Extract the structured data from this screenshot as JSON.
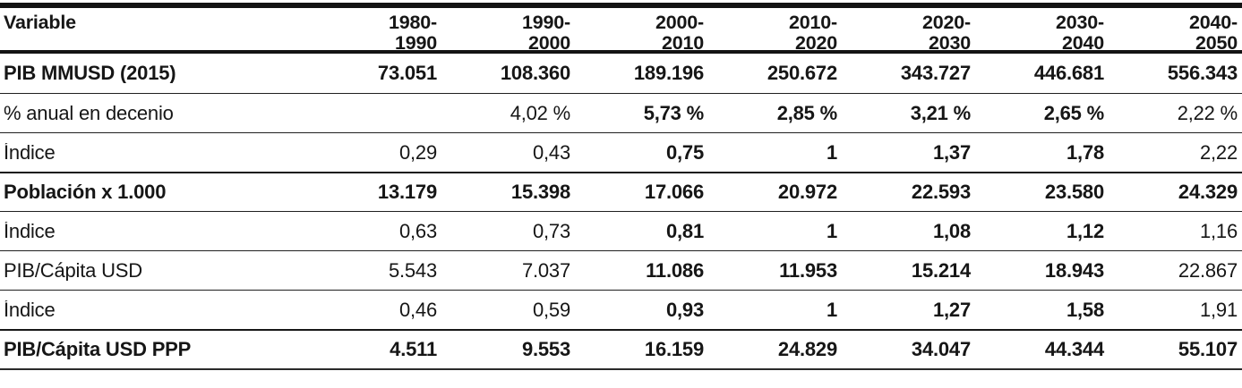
{
  "table": {
    "header": {
      "variable": "Variable",
      "periods": [
        "1980-\n1990",
        "1990-\n2000",
        "2000-\n2010",
        "2010-\n2020",
        "2020-\n2030",
        "2030-\n2040",
        "2040-\n2050"
      ]
    },
    "rows": [
      {
        "label": "PIB MMUSD (2015)",
        "c1": "73.051",
        "c2": "108.360",
        "c3": "189.196",
        "c4": "250.672",
        "c5": "343.727",
        "c6": "446.681",
        "c7": "556.343",
        "bold": [
          "label",
          "c1",
          "c2",
          "c3",
          "c4",
          "c5",
          "c6",
          "c7"
        ]
      },
      {
        "label": "% anual en decenio",
        "c1": "",
        "c2": "4,02 %",
        "c3": "5,73 %",
        "c4": "2,85 %",
        "c5": "3,21 %",
        "c6": "2,65 %",
        "c7": "2,22 %",
        "bold": [
          "c3",
          "c4",
          "c5",
          "c6"
        ]
      },
      {
        "label": "Índice",
        "c1": "0,29",
        "c2": "0,43",
        "c3": "0,75",
        "c4": "1",
        "c5": "1,37",
        "c6": "1,78",
        "c7": "2,22",
        "bold": [
          "c3",
          "c4",
          "c5",
          "c6"
        ]
      },
      {
        "label": "Población x 1.000",
        "c1": "13.179",
        "c2": "15.398",
        "c3": "17.066",
        "c4": "20.972",
        "c5": "22.593",
        "c6": "23.580",
        "c7": "24.329",
        "bold": [
          "label",
          "c1",
          "c2",
          "c3",
          "c4",
          "c5",
          "c6",
          "c7"
        ]
      },
      {
        "label": "Índice",
        "c1": "0,63",
        "c2": "0,73",
        "c3": "0,81",
        "c4": "1",
        "c5": "1,08",
        "c6": "1,12",
        "c7": "1,16",
        "bold": [
          "c3",
          "c4",
          "c5",
          "c6"
        ]
      },
      {
        "label": "PIB/Cápita USD",
        "c1": "5.543",
        "c2": "7.037",
        "c3": "11.086",
        "c4": "11.953",
        "c5": "15.214",
        "c6": "18.943",
        "c7": "22.867",
        "bold": [
          "c3",
          "c4",
          "c5",
          "c6"
        ]
      },
      {
        "label": "Índice",
        "c1": "0,46",
        "c2": "0,59",
        "c3": "0,93",
        "c4": "1",
        "c5": "1,27",
        "c6": "1,58",
        "c7": "1,91",
        "bold": [
          "c3",
          "c4",
          "c5",
          "c6"
        ]
      },
      {
        "label": "PIB/Cápita USD PPP",
        "c1": "4.511",
        "c2": "9.553",
        "c3": "16.159",
        "c4": "24.829",
        "c5": "34.047",
        "c6": "44.344",
        "c7": "55.107",
        "bold": [
          "label",
          "c1",
          "c2",
          "c3",
          "c4",
          "c5",
          "c6",
          "c7"
        ]
      }
    ]
  },
  "colors": {
    "text": "#161616",
    "rule_heavy": "#131313",
    "rule_light": "#1f1f1f",
    "background": "#ffffff"
  }
}
